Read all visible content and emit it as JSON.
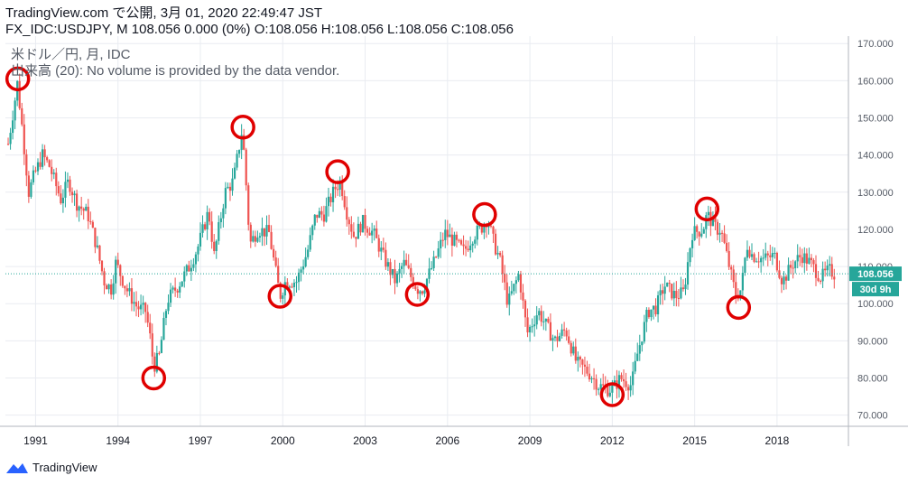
{
  "header": {
    "published_line": "TradingView.com で公開, 3月 01, 2020 22:49:47 JST",
    "symbol": "FX_IDC:USDJPY, M",
    "last": "108.056",
    "change": "0.000 (0%)",
    "ohlc": {
      "o": "O:108.056",
      "h": "H:108.056",
      "l": "L:108.056",
      "c": "C:108.056"
    }
  },
  "legend": {
    "series_line": "米ドル／円, 月, IDC",
    "volume_line": "出来高 (20): No volume is provided by the data vendor."
  },
  "price_label": "108.056",
  "countdown_label": "30d 9h",
  "footer": {
    "brand": "TradingView"
  },
  "colors": {
    "up": "#26a69a",
    "down": "#ef5350",
    "marker": "#e00000",
    "price_line": "#26a69a",
    "grid": "#e9ecf1"
  },
  "chart_data": {
    "type": "candlestick",
    "title": "米ドル／円, 月, IDC",
    "interval": "monthly",
    "ylim": [
      67,
      172
    ],
    "yticks": [
      70.0,
      80.0,
      90.0,
      100.0,
      110.0,
      120.0,
      130.0,
      140.0,
      150.0,
      160.0,
      170.0
    ],
    "ytick_labels": [
      "70.000",
      "80.000",
      "90.000",
      "100.000",
      "110.000",
      "120.000",
      "130.000",
      "140.000",
      "150.000",
      "160.000",
      "170.000"
    ],
    "xlim": [
      1989.9,
      2020.6
    ],
    "xticks": [
      1991,
      1994,
      1997,
      2000,
      2003,
      2006,
      2009,
      2012,
      2015,
      2018
    ],
    "xtick_labels": [
      "1991",
      "1994",
      "1997",
      "2000",
      "2003",
      "2006",
      "2009",
      "2012",
      "2015",
      "2018"
    ],
    "current_price": 108.056,
    "grid": true,
    "series": [
      {
        "name": "USDJPY",
        "points": [
          [
            1990.0,
            143
          ],
          [
            1990.25,
            155
          ],
          [
            1990.33,
            159.5
          ],
          [
            1990.5,
            148
          ],
          [
            1990.75,
            130
          ],
          [
            1990.92,
            134
          ],
          [
            1991.25,
            140
          ],
          [
            1991.5,
            137
          ],
          [
            1991.92,
            128
          ],
          [
            1992.2,
            133
          ],
          [
            1992.5,
            127
          ],
          [
            1992.9,
            124
          ],
          [
            1993.2,
            116
          ],
          [
            1993.5,
            106
          ],
          [
            1993.75,
            104
          ],
          [
            1993.92,
            111
          ],
          [
            1994.3,
            104
          ],
          [
            1994.7,
            99
          ],
          [
            1995.0,
            98
          ],
          [
            1995.15,
            92
          ],
          [
            1995.3,
            83
          ],
          [
            1995.5,
            86
          ],
          [
            1995.8,
            101
          ],
          [
            1996.2,
            105
          ],
          [
            1996.6,
            110
          ],
          [
            1996.9,
            115
          ],
          [
            1997.3,
            125
          ],
          [
            1997.5,
            113
          ],
          [
            1997.9,
            130
          ],
          [
            1998.2,
            133
          ],
          [
            1998.5,
            146
          ],
          [
            1998.6,
            140
          ],
          [
            1998.8,
            116
          ],
          [
            1999.1,
            120
          ],
          [
            1999.5,
            119
          ],
          [
            1999.9,
            102
          ],
          [
            2000.1,
            106
          ],
          [
            2000.5,
            106
          ],
          [
            2000.9,
            114
          ],
          [
            2001.2,
            124
          ],
          [
            2001.5,
            124
          ],
          [
            2001.9,
            131
          ],
          [
            2002.1,
            133
          ],
          [
            2002.35,
            124
          ],
          [
            2002.6,
            118
          ],
          [
            2002.9,
            122
          ],
          [
            2003.3,
            119
          ],
          [
            2003.7,
            112
          ],
          [
            2004.1,
            106
          ],
          [
            2004.4,
            111
          ],
          [
            2004.9,
            104
          ],
          [
            2005.1,
            104
          ],
          [
            2005.5,
            111
          ],
          [
            2005.9,
            119
          ],
          [
            2006.2,
            117
          ],
          [
            2006.6,
            114
          ],
          [
            2006.9,
            118
          ],
          [
            2007.3,
            121
          ],
          [
            2007.45,
            123
          ],
          [
            2007.7,
            116
          ],
          [
            2007.9,
            112
          ],
          [
            2008.2,
            100
          ],
          [
            2008.6,
            108
          ],
          [
            2008.9,
            92
          ],
          [
            2009.3,
            98
          ],
          [
            2009.6,
            94
          ],
          [
            2009.9,
            90
          ],
          [
            2010.3,
            93
          ],
          [
            2010.7,
            84
          ],
          [
            2010.9,
            83
          ],
          [
            2011.2,
            81
          ],
          [
            2011.5,
            78
          ],
          [
            2011.8,
            77
          ],
          [
            2012.0,
            77
          ],
          [
            2012.3,
            80
          ],
          [
            2012.7,
            78
          ],
          [
            2012.9,
            86
          ],
          [
            2013.3,
            98
          ],
          [
            2013.6,
            99
          ],
          [
            2013.9,
            105
          ],
          [
            2014.3,
            102
          ],
          [
            2014.6,
            103
          ],
          [
            2014.9,
            119
          ],
          [
            2015.3,
            120
          ],
          [
            2015.45,
            124
          ],
          [
            2015.8,
            120
          ],
          [
            2015.95,
            120
          ],
          [
            2016.2,
            112
          ],
          [
            2016.5,
            102
          ],
          [
            2016.7,
            104
          ],
          [
            2016.9,
            116
          ],
          [
            2017.1,
            113
          ],
          [
            2017.5,
            112
          ],
          [
            2017.9,
            113
          ],
          [
            2018.2,
            106
          ],
          [
            2018.6,
            111
          ],
          [
            2018.9,
            113
          ],
          [
            2019.2,
            111
          ],
          [
            2019.6,
            107
          ],
          [
            2019.9,
            109
          ],
          [
            2020.1,
            108
          ]
        ]
      }
    ],
    "annotations": [
      {
        "type": "circle",
        "x": 1990.35,
        "y": 160.5
      },
      {
        "type": "circle",
        "x": 1995.3,
        "y": 80
      },
      {
        "type": "circle",
        "x": 1998.55,
        "y": 147.5
      },
      {
        "type": "circle",
        "x": 1999.9,
        "y": 102
      },
      {
        "type": "circle",
        "x": 2002.0,
        "y": 135.5
      },
      {
        "type": "circle",
        "x": 2004.9,
        "y": 102.5
      },
      {
        "type": "circle",
        "x": 2007.35,
        "y": 124
      },
      {
        "type": "circle",
        "x": 2012.0,
        "y": 75.5
      },
      {
        "type": "circle",
        "x": 2015.45,
        "y": 125.5
      },
      {
        "type": "circle",
        "x": 2016.6,
        "y": 99
      }
    ]
  }
}
